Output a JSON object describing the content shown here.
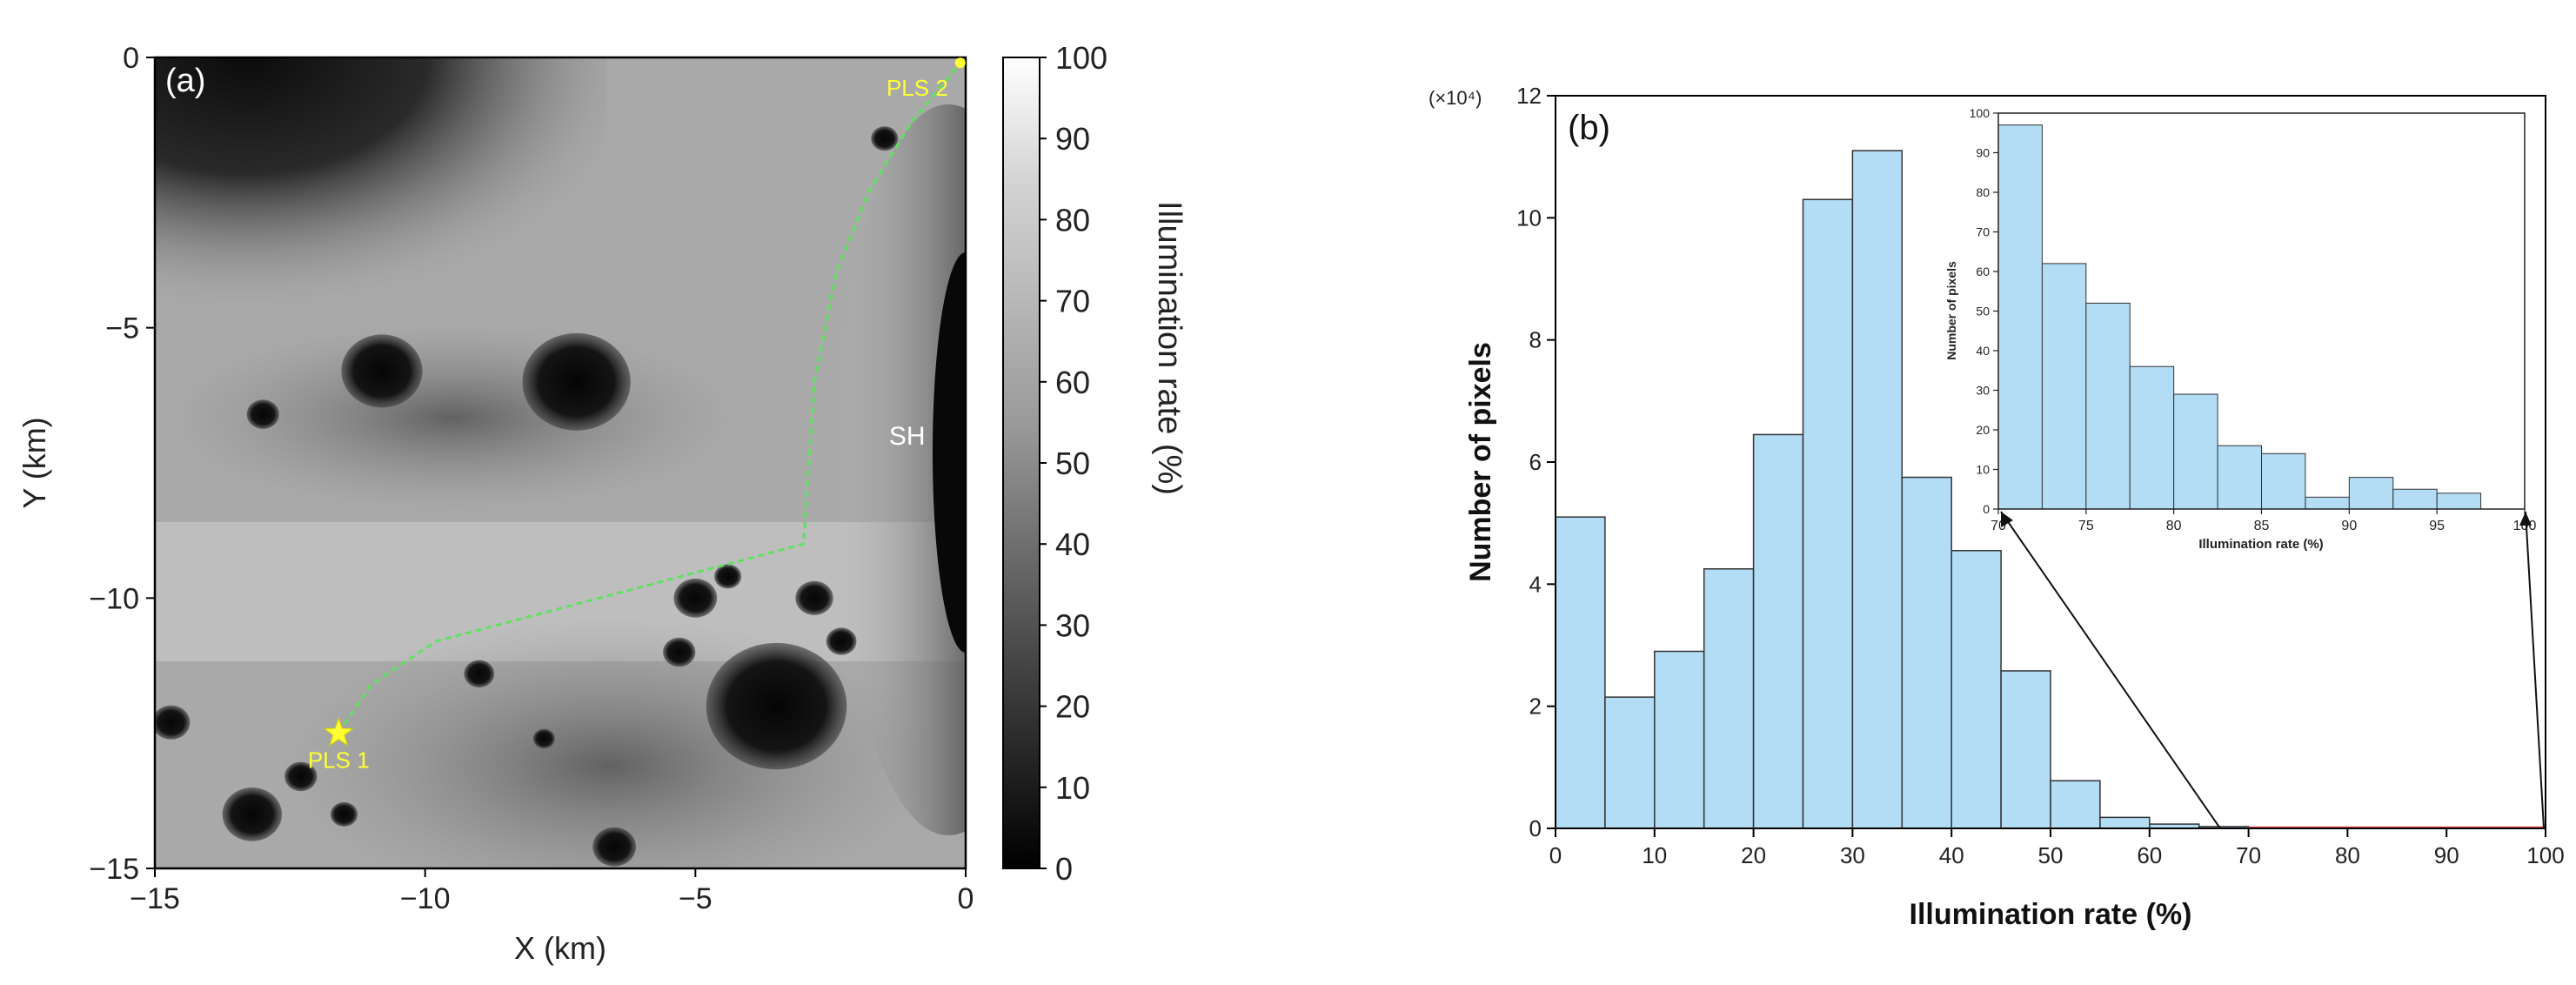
{
  "chart_data": [
    {
      "type": "heatmap",
      "panel_label": "(a)",
      "xlabel": "X (km)",
      "ylabel": "Y (km)",
      "xlim": [
        -15,
        0
      ],
      "ylim": [
        -15,
        0
      ],
      "xticks": [
        -15,
        -10,
        -5,
        0
      ],
      "yticks": [
        0,
        -5,
        -10,
        -15
      ],
      "xtick_labels": [
        "−15",
        "−10",
        "−5",
        "0"
      ],
      "ytick_labels": [
        "0",
        "−5",
        "−10",
        "−15"
      ],
      "colorbar": {
        "label": "Illumination rate (%)",
        "range": [
          0,
          100
        ],
        "ticks": [
          0,
          10,
          20,
          30,
          40,
          50,
          60,
          70,
          80,
          90,
          100
        ],
        "tick_labels": [
          "0",
          "10",
          "20",
          "30",
          "40",
          "50",
          "60",
          "70",
          "80",
          "90",
          "100"
        ]
      },
      "annotations": [
        {
          "text": "PLS 1",
          "x": -11.6,
          "y": -12.5
        },
        {
          "text": "PLS 2",
          "x": -0.1,
          "y": -0.1
        },
        {
          "text": "SH",
          "x": -0.6,
          "y": -7.0
        }
      ],
      "route": [
        [
          -11.6,
          -12.5
        ],
        [
          -11.0,
          -11.6
        ],
        [
          -9.8,
          -10.8
        ],
        [
          -3.0,
          -9.0
        ],
        [
          -2.9,
          -7.5
        ],
        [
          -2.8,
          -6.0
        ],
        [
          -2.4,
          -4.0
        ],
        [
          -1.8,
          -2.5
        ],
        [
          -1.0,
          -1.2
        ],
        [
          -0.1,
          -0.1
        ]
      ],
      "craters": [
        {
          "x": -14.7,
          "y": -12.3,
          "r": 0.35
        },
        {
          "x": -13.2,
          "y": -14.0,
          "r": 0.55
        },
        {
          "x": -12.3,
          "y": -13.3,
          "r": 0.3
        },
        {
          "x": -11.5,
          "y": -14.0,
          "r": 0.25
        },
        {
          "x": -9.0,
          "y": -11.4,
          "r": 0.28
        },
        {
          "x": -7.8,
          "y": -12.6,
          "r": 0.2
        },
        {
          "x": -6.5,
          "y": -14.6,
          "r": 0.4
        },
        {
          "x": -5.0,
          "y": -10.0,
          "r": 0.4
        },
        {
          "x": -4.4,
          "y": -9.6,
          "r": 0.25
        },
        {
          "x": -3.5,
          "y": -12.0,
          "r": 1.3
        },
        {
          "x": -2.8,
          "y": -10.0,
          "r": 0.35
        },
        {
          "x": -2.3,
          "y": -10.8,
          "r": 0.28
        },
        {
          "x": -7.2,
          "y": -6.0,
          "r": 1.0
        },
        {
          "x": -10.8,
          "y": -5.8,
          "r": 0.75
        },
        {
          "x": -13.0,
          "y": -6.6,
          "r": 0.3
        },
        {
          "x": -1.5,
          "y": -1.5,
          "r": 0.25
        },
        {
          "x": -5.3,
          "y": -11.0,
          "r": 0.3
        }
      ]
    },
    {
      "type": "bar",
      "panel_label": "(b)",
      "title": "",
      "xlabel": "Illumination rate (%)",
      "ylabel": "Number of pixels",
      "multiplier_label": "(×10⁴)",
      "xlim": [
        0,
        100
      ],
      "ylim": [
        0,
        12
      ],
      "xticks": [
        0,
        10,
        20,
        30,
        40,
        50,
        60,
        70,
        80,
        90,
        100
      ],
      "yticks": [
        0,
        2,
        4,
        6,
        8,
        10,
        12
      ],
      "bin_edges": [
        0,
        5,
        10,
        15,
        20,
        25,
        30,
        35,
        40,
        45,
        50,
        55,
        60,
        65,
        70,
        75,
        80,
        85,
        90,
        95,
        100
      ],
      "values": [
        5.1,
        2.15,
        2.9,
        4.25,
        6.45,
        10.3,
        11.1,
        5.75,
        4.55,
        2.58,
        0.78,
        0.18,
        0.07,
        0.03,
        0.0097,
        0.0044,
        0.0024,
        0.0006,
        0.0008,
        0.0004
      ],
      "bar_color": "#b3dcf5",
      "highlight_color": "#e8474c"
    },
    {
      "type": "bar",
      "title": "",
      "inset": true,
      "xlabel": "Illumination rate (%)",
      "ylabel": "Number of pixels",
      "xlim": [
        70,
        100
      ],
      "ylim": [
        0,
        100
      ],
      "xticks": [
        70,
        75,
        80,
        85,
        90,
        95,
        100
      ],
      "yticks": [
        0,
        10,
        20,
        30,
        40,
        50,
        60,
        70,
        80,
        90,
        100
      ],
      "bin_edges": [
        70,
        72.5,
        75,
        77.5,
        80,
        82.5,
        85,
        87.5,
        90,
        92.5,
        95,
        97.5
      ],
      "values": [
        97,
        62,
        52,
        36,
        29,
        16,
        14,
        3,
        8,
        5,
        4
      ],
      "bar_color": "#b3dcf5"
    }
  ]
}
